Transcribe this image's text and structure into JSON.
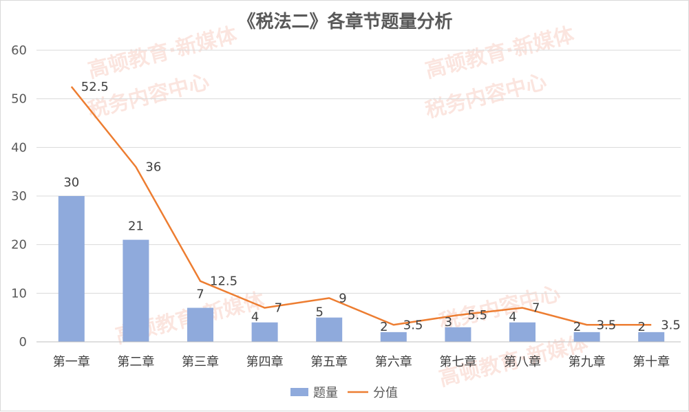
{
  "title": "《税法二》各章节题量分析",
  "watermark_text": [
    "高顿教育·新媒体",
    "税务内容中心"
  ],
  "chart_data": {
    "type": "bar",
    "categories": [
      "第一章",
      "第二章",
      "第三章",
      "第四章",
      "第五章",
      "第六章",
      "第七章",
      "第八章",
      "第九章",
      "第十章"
    ],
    "series": [
      {
        "name": "题量",
        "type": "bar",
        "color": "#8faadc",
        "values": [
          30,
          21,
          7,
          4,
          5,
          2,
          3,
          4,
          2,
          2
        ]
      },
      {
        "name": "分值",
        "type": "line",
        "color": "#ed7d31",
        "values": [
          52.5,
          36,
          12.5,
          7,
          9,
          3.5,
          5.5,
          7,
          3.5,
          3.5
        ]
      }
    ],
    "ylim": [
      0,
      60
    ],
    "yticks": [
      "0",
      "10",
      "20",
      "30",
      "40",
      "50",
      "60"
    ],
    "grid": true,
    "legend": "bottom"
  }
}
